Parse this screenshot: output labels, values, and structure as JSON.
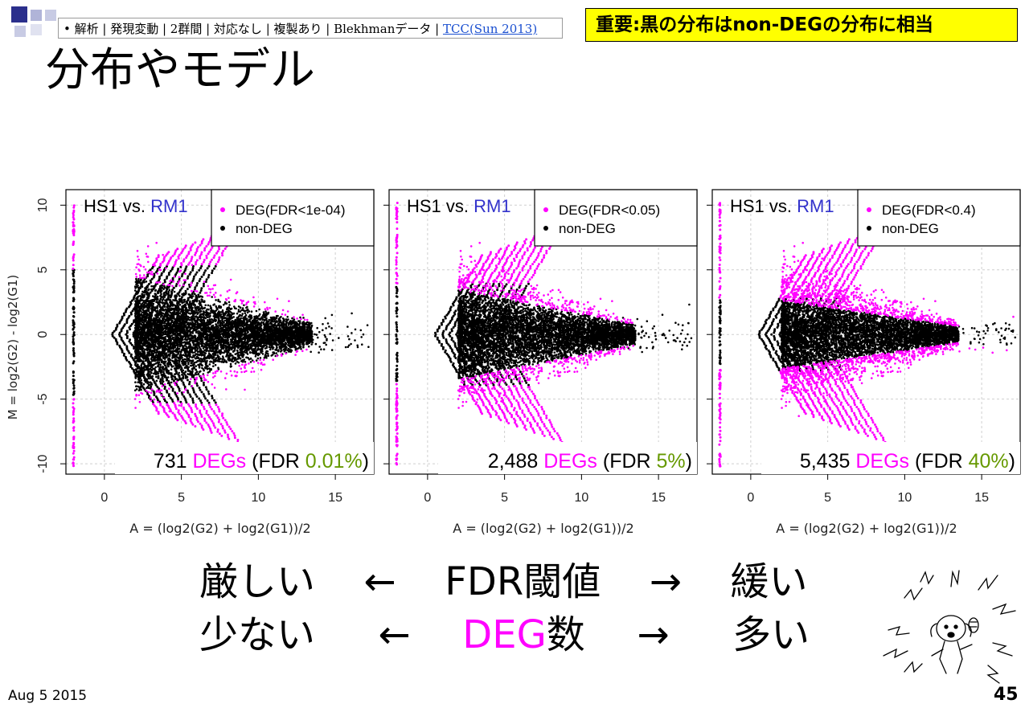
{
  "breadcrumb": {
    "text": "• 解析 | 発現変動 | 2群間 | 対応なし | 複製あり | Blekhmanデータ | ",
    "link": "TCC(Sun 2013)"
  },
  "notice": "重要:黒の分布はnon-DEGの分布に相当",
  "title": "分布やモデル",
  "colors": {
    "deg": "#ff00ff",
    "nondeg": "#000000",
    "blue": "#3333cc",
    "green": "#669900"
  },
  "chart_data": [
    {
      "type": "scatter",
      "title_left": "HS1 vs.",
      "title_right": "RM1",
      "legend": [
        "DEG(FDR<1e-04)",
        "non-DEG"
      ],
      "legend_position": "top-right",
      "annotation": {
        "count": "731",
        "degs": "DEGs",
        "fdr_open": "(FDR",
        "fdr_value": "0.01%",
        "fdr_close": ")"
      },
      "xlabel": "A = (log2(G2) + log2(G1))/2",
      "ylabel": "M = log2(G2) - log2(G1)",
      "xlim": [
        -2.5,
        17.5
      ],
      "ylim": [
        -10.8,
        11.2
      ],
      "xticks": [
        0,
        5,
        10,
        15
      ],
      "yticks": [
        -10,
        -5,
        0,
        5,
        10
      ],
      "grid": true,
      "deg_width_scale": 1.0
    },
    {
      "type": "scatter",
      "title_left": "HS1 vs.",
      "title_right": "RM1",
      "legend": [
        "DEG(FDR<0.05)",
        "non-DEG"
      ],
      "legend_position": "top-right",
      "annotation": {
        "count": "2,488",
        "degs": "DEGs",
        "fdr_open": "(FDR",
        "fdr_value": "5%",
        "fdr_close": ")"
      },
      "xlabel": "A = (log2(G2) + log2(G1))/2",
      "ylabel": "",
      "xlim": [
        -2.5,
        17.5
      ],
      "ylim": [
        -10.8,
        11.2
      ],
      "xticks": [
        0,
        5,
        10,
        15
      ],
      "yticks": [
        -10,
        -5,
        0,
        5,
        10
      ],
      "grid": true,
      "deg_width_scale": 0.7
    },
    {
      "type": "scatter",
      "title_left": "HS1 vs.",
      "title_right": "RM1",
      "legend": [
        "DEG(FDR<0.4)",
        "non-DEG"
      ],
      "legend_position": "top-right",
      "annotation": {
        "count": "5,435",
        "degs": "DEGs",
        "fdr_open": "(FDR",
        "fdr_value": "40%",
        "fdr_close": ")"
      },
      "xlabel": "A = (log2(G2) + log2(G1))/2",
      "ylabel": "",
      "xlim": [
        -2.5,
        17.5
      ],
      "ylim": [
        -10.8,
        11.2
      ],
      "xticks": [
        0,
        5,
        10,
        15
      ],
      "yticks": [
        -10,
        -5,
        0,
        5,
        10
      ],
      "grid": true,
      "deg_width_scale": 0.45
    }
  ],
  "bottom": {
    "row1": {
      "left": "厳しい",
      "arrow_left": "←",
      "center": "FDR閾値",
      "arrow_right": "→",
      "right": "緩い"
    },
    "row2": {
      "left": "少ない",
      "arrow_left": "←",
      "center_highlight": "DEG",
      "center_rest": "数",
      "arrow_right": "→",
      "right": "多い"
    }
  },
  "footer": {
    "date": "Aug 5 2015",
    "page": "45"
  }
}
